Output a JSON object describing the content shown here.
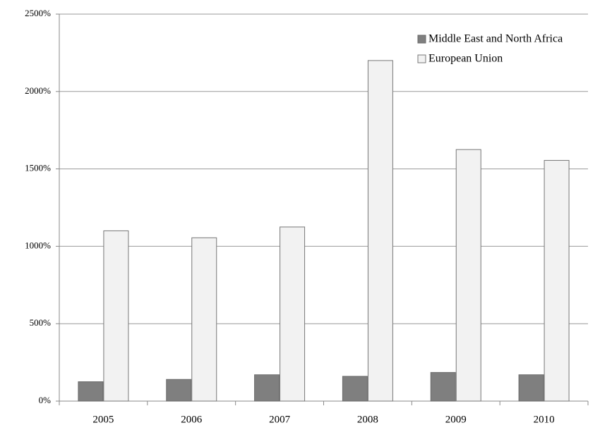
{
  "chart_data": {
    "type": "bar",
    "categories": [
      "2005",
      "2006",
      "2007",
      "2008",
      "2009",
      "2010"
    ],
    "series": [
      {
        "name": "Middle East and North Africa",
        "color": "#7f7f7f",
        "values": [
          125,
          140,
          170,
          160,
          185,
          170
        ]
      },
      {
        "name": "European Union",
        "color": "#f2f2f2",
        "values": [
          1100,
          1055,
          1125,
          2200,
          1625,
          1555
        ]
      }
    ],
    "ylim": [
      0,
      2500
    ],
    "yticks": [
      {
        "value": 0,
        "label": "0%"
      },
      {
        "value": 500,
        "label": "500%"
      },
      {
        "value": 1000,
        "label": "1000%"
      },
      {
        "value": 1500,
        "label": "1500%"
      },
      {
        "value": 2000,
        "label": "2000%"
      },
      {
        "value": 2500,
        "label": "2500%"
      }
    ],
    "grid": true,
    "legend": "top-right"
  }
}
